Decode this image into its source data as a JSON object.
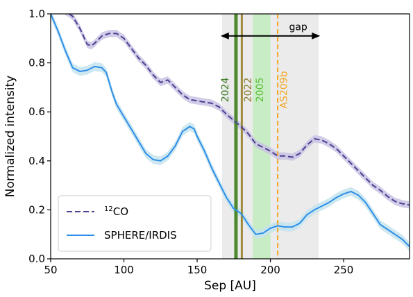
{
  "chart_data": {
    "type": "line",
    "xlabel": "Sep [AU]",
    "ylabel": "Normalized intensity",
    "xlim": [
      50,
      295
    ],
    "ylim": [
      0.0,
      1.0
    ],
    "xticks": [
      50,
      100,
      150,
      200,
      250
    ],
    "yticks": [
      0.0,
      0.2,
      0.4,
      0.6,
      0.8,
      1.0
    ],
    "xtick_labels": [
      "50",
      "100",
      "150",
      "200",
      "250"
    ],
    "ytick_labels": [
      "0.0",
      "0.2",
      "0.4",
      "0.6",
      "0.8",
      "1.0"
    ],
    "grid": false,
    "legend_position": "lower-left",
    "series": [
      {
        "name": "12CO",
        "name_sup": "12",
        "name_main": "CO",
        "style": "dashed",
        "color": "#4b3f8f",
        "band_color": "#c9c3e4",
        "band": 0.015,
        "points": [
          [
            58,
            1.02
          ],
          [
            65,
            0.99
          ],
          [
            70,
            0.94
          ],
          [
            75,
            0.875
          ],
          [
            78,
            0.87
          ],
          [
            80,
            0.88
          ],
          [
            85,
            0.91
          ],
          [
            90,
            0.92
          ],
          [
            95,
            0.92
          ],
          [
            100,
            0.9
          ],
          [
            105,
            0.86
          ],
          [
            110,
            0.82
          ],
          [
            115,
            0.79
          ],
          [
            120,
            0.75
          ],
          [
            125,
            0.72
          ],
          [
            130,
            0.73
          ],
          [
            135,
            0.7
          ],
          [
            140,
            0.67
          ],
          [
            145,
            0.65
          ],
          [
            150,
            0.645
          ],
          [
            155,
            0.64
          ],
          [
            160,
            0.635
          ],
          [
            165,
            0.62
          ],
          [
            170,
            0.59
          ],
          [
            175,
            0.565
          ],
          [
            180,
            0.54
          ],
          [
            185,
            0.51
          ],
          [
            190,
            0.47
          ],
          [
            195,
            0.455
          ],
          [
            200,
            0.44
          ],
          [
            205,
            0.42
          ],
          [
            210,
            0.42
          ],
          [
            215,
            0.415
          ],
          [
            220,
            0.43
          ],
          [
            225,
            0.465
          ],
          [
            230,
            0.49
          ],
          [
            235,
            0.485
          ],
          [
            240,
            0.47
          ],
          [
            245,
            0.45
          ],
          [
            250,
            0.42
          ],
          [
            255,
            0.39
          ],
          [
            260,
            0.36
          ],
          [
            265,
            0.33
          ],
          [
            270,
            0.3
          ],
          [
            275,
            0.28
          ],
          [
            280,
            0.255
          ],
          [
            285,
            0.235
          ],
          [
            290,
            0.225
          ],
          [
            295,
            0.22
          ]
        ]
      },
      {
        "name": "SPHERE/IRDIS",
        "style": "solid",
        "color": "#2d8fe8",
        "band_color": "#c5e4ee",
        "band": 0.018,
        "points": [
          [
            50,
            1.0
          ],
          [
            55,
            0.93
          ],
          [
            60,
            0.85
          ],
          [
            65,
            0.78
          ],
          [
            70,
            0.765
          ],
          [
            75,
            0.77
          ],
          [
            80,
            0.785
          ],
          [
            85,
            0.78
          ],
          [
            88,
            0.76
          ],
          [
            92,
            0.68
          ],
          [
            95,
            0.63
          ],
          [
            100,
            0.58
          ],
          [
            105,
            0.53
          ],
          [
            110,
            0.48
          ],
          [
            115,
            0.43
          ],
          [
            120,
            0.405
          ],
          [
            125,
            0.4
          ],
          [
            130,
            0.42
          ],
          [
            135,
            0.46
          ],
          [
            140,
            0.52
          ],
          [
            145,
            0.54
          ],
          [
            148,
            0.53
          ],
          [
            150,
            0.5
          ],
          [
            155,
            0.44
          ],
          [
            160,
            0.37
          ],
          [
            165,
            0.31
          ],
          [
            170,
            0.25
          ],
          [
            175,
            0.205
          ],
          [
            180,
            0.185
          ],
          [
            185,
            0.14
          ],
          [
            190,
            0.1
          ],
          [
            195,
            0.105
          ],
          [
            200,
            0.125
          ],
          [
            205,
            0.135
          ],
          [
            210,
            0.13
          ],
          [
            215,
            0.13
          ],
          [
            220,
            0.145
          ],
          [
            225,
            0.18
          ],
          [
            230,
            0.2
          ],
          [
            235,
            0.215
          ],
          [
            240,
            0.23
          ],
          [
            245,
            0.25
          ],
          [
            250,
            0.265
          ],
          [
            255,
            0.275
          ],
          [
            260,
            0.26
          ],
          [
            265,
            0.23
          ],
          [
            270,
            0.185
          ],
          [
            275,
            0.14
          ],
          [
            280,
            0.12
          ],
          [
            285,
            0.1
          ],
          [
            290,
            0.08
          ],
          [
            295,
            0.05
          ]
        ]
      }
    ],
    "vbands": [
      {
        "x0": 167,
        "x1": 233,
        "color": "#ebebeb"
      },
      {
        "x0": 188,
        "x1": 200,
        "color": "#c8ecc3"
      }
    ],
    "vlines": [
      {
        "x": 176.5,
        "color": "#4d8a2f",
        "width": 5,
        "style": "solid"
      },
      {
        "x": 180.5,
        "color": "#9d8a3c",
        "width": 3,
        "style": "solid"
      },
      {
        "x": 205,
        "color": "#f5a623",
        "width": 2,
        "style": "dashed"
      }
    ],
    "annotations": [
      {
        "text": "2024",
        "x": 169.5,
        "y": 0.69,
        "rotation": 90,
        "color": "#3d7d26"
      },
      {
        "text": "2022",
        "x": 185,
        "y": 0.69,
        "rotation": 90,
        "color": "#8a7a2a"
      },
      {
        "text": "2005",
        "x": 193,
        "y": 0.69,
        "rotation": 90,
        "color": "#5bbf3a"
      },
      {
        "text": "AS209b",
        "x": 209.5,
        "y": 0.69,
        "rotation": 90,
        "color": "#f5a623"
      },
      {
        "text": "gap",
        "x": 219,
        "y": 0.945,
        "rotation": 0,
        "color": "#000000"
      }
    ],
    "arrow": {
      "x0": 166,
      "x1": 234,
      "y": 0.91,
      "color": "#000000"
    }
  }
}
